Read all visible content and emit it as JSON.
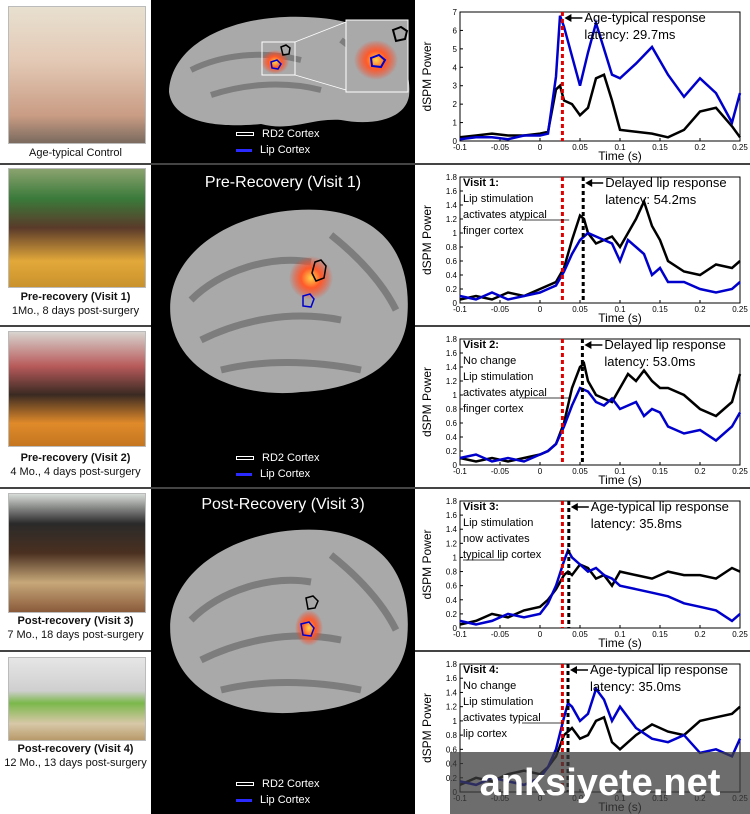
{
  "left_panels": [
    {
      "title": "Age-typical Control",
      "subtitle": ""
    },
    {
      "title": "Pre-recovery (Visit 1)",
      "subtitle": "1Mo., 8 days post-surgery"
    },
    {
      "title": "Pre-recovery (Visit 2)",
      "subtitle": "4 Mo., 4 days post-surgery"
    },
    {
      "title": "Post-recovery (Visit 3)",
      "subtitle": "7 Mo., 18 days post-surgery"
    },
    {
      "title": "Post-recovery (Visit 4)",
      "subtitle": "12 Mo., 13 days post-surgery"
    }
  ],
  "middle": {
    "titles": [
      "Pre-Recovery (Visit 1)",
      "Post-Recovery (Visit 3)"
    ],
    "legend": [
      {
        "label": "RD2 Cortex",
        "color": "#000000"
      },
      {
        "label": "Lip Cortex",
        "color": "#0000cc"
      }
    ]
  },
  "charts": [
    {
      "visit_label": "",
      "desc": [],
      "underline_word": "",
      "annotation": [
        "Age-typical response",
        "latency: 29.7ms"
      ],
      "ylabel": "dSPM Power",
      "xlabel": "Time (s)",
      "yticks": [
        "0",
        "1",
        "2",
        "3",
        "4",
        "5",
        "6",
        "7"
      ],
      "xticks": [
        "-0.1",
        "-0.05",
        "0",
        "0.05",
        "0.1",
        "0.15",
        "0.2",
        "0.25"
      ]
    },
    {
      "visit_label": "Visit 1",
      "desc": [
        "Lip stimulation",
        "activates atypical",
        "finger cortex"
      ],
      "underline_word": "atypical",
      "annotation": [
        "Delayed lip response",
        "latency: 54.2ms"
      ],
      "ylabel": "dSPM Power",
      "xlabel": "Time (s)",
      "yticks": [
        "0",
        "0.2",
        "0.4",
        "0.6",
        "0.8",
        "1",
        "1.2",
        "1.4",
        "1.6",
        "1.8"
      ],
      "xticks": [
        "-0.1",
        "-0.05",
        "0",
        "0.05",
        "0.1",
        "0.15",
        "0.2",
        "0.25"
      ]
    },
    {
      "visit_label": "Visit 2",
      "desc": [
        "No change",
        "Lip stimulation",
        "activates atypical",
        "finger cortex"
      ],
      "underline_word": "atypical",
      "annotation": [
        "Delayed lip response",
        "latency: 53.0ms"
      ],
      "ylabel": "dSPM Power",
      "xlabel": "Time (s)",
      "yticks": [
        "0",
        "0.2",
        "0.4",
        "0.6",
        "0.8",
        "1",
        "1.2",
        "1.4",
        "1.6",
        "1.8"
      ],
      "xticks": [
        "-0.1",
        "-0.05",
        "0",
        "0.05",
        "0.1",
        "0.15",
        "0.2",
        "0.25"
      ]
    },
    {
      "visit_label": "Visit 3",
      "desc": [
        "Lip stimulation",
        "now activates",
        "typical lip cortex"
      ],
      "underline_word": "typical",
      "annotation": [
        "Age-typical lip response",
        "latency: 35.8ms"
      ],
      "ylabel": "dSPM Power",
      "xlabel": "Time (s)",
      "yticks": [
        "0",
        "0.2",
        "0.4",
        "0.6",
        "0.8",
        "1",
        "1.2",
        "1.4",
        "1.6",
        "1.8"
      ],
      "xticks": [
        "-0.1",
        "-0.05",
        "0",
        "0.05",
        "0.1",
        "0.15",
        "0.2",
        "0.25"
      ]
    },
    {
      "visit_label": "Visit 4",
      "desc": [
        "No change",
        "Lip stimulation",
        "activates typical",
        "lip cortex"
      ],
      "underline_word": "typical",
      "annotation": [
        "Age-typical lip response",
        "latency: 35.0ms"
      ],
      "ylabel": "dSPM Power",
      "xlabel": "Time (s)",
      "yticks": [
        "0",
        "0.2",
        "0.4",
        "0.6",
        "0.8",
        "1",
        "1.2",
        "1.4",
        "1.6",
        "1.8"
      ],
      "xticks": [
        "-0.1",
        "-0.05",
        "0",
        "0.05",
        "0.1",
        "0.15",
        "0.2",
        "0.25"
      ]
    }
  ],
  "chart_data": [
    {
      "type": "line",
      "xlabel": "Time (s)",
      "ylabel": "dSPM Power",
      "xlim": [
        -0.1,
        0.25
      ],
      "ylim": [
        0,
        7
      ],
      "onset_line_red": 0.028,
      "latency_line_black": null,
      "series": [
        {
          "name": "RD2 Cortex",
          "color": "#000000",
          "x": [
            -0.1,
            -0.08,
            -0.06,
            -0.04,
            -0.02,
            0,
            0.01,
            0.02,
            0.025,
            0.03,
            0.04,
            0.05,
            0.06,
            0.07,
            0.08,
            0.09,
            0.1,
            0.12,
            0.14,
            0.16,
            0.18,
            0.2,
            0.22,
            0.24,
            0.25
          ],
          "y": [
            0.2,
            0.3,
            0.4,
            0.3,
            0.3,
            0.4,
            0.5,
            2.8,
            3.0,
            2.2,
            2.0,
            1.4,
            1.8,
            3.4,
            3.6,
            2.2,
            0.6,
            0.5,
            0.4,
            0.2,
            0.6,
            1.6,
            1.8,
            0.8,
            0.2
          ]
        },
        {
          "name": "Lip Cortex",
          "color": "#0000cc",
          "x": [
            -0.1,
            -0.08,
            -0.06,
            -0.04,
            -0.02,
            0,
            0.01,
            0.02,
            0.025,
            0.03,
            0.04,
            0.05,
            0.06,
            0.07,
            0.08,
            0.09,
            0.1,
            0.12,
            0.14,
            0.16,
            0.18,
            0.2,
            0.22,
            0.24,
            0.25
          ],
          "y": [
            0.1,
            0.2,
            0.2,
            0.1,
            0.3,
            0.3,
            0.4,
            3.5,
            6.8,
            6.2,
            4.6,
            3.0,
            4.8,
            6.4,
            5.0,
            3.6,
            3.4,
            4.2,
            5.1,
            3.6,
            2.4,
            3.4,
            2.6,
            1.0,
            2.6
          ]
        }
      ]
    },
    {
      "type": "line",
      "xlabel": "Time (s)",
      "ylabel": "dSPM Power",
      "xlim": [
        -0.1,
        0.25
      ],
      "ylim": [
        0,
        1.8
      ],
      "onset_line_red": 0.028,
      "latency_line_black": 0.054,
      "series": [
        {
          "name": "RD2 Cortex",
          "color": "#000000",
          "x": [
            -0.1,
            -0.08,
            -0.06,
            -0.04,
            -0.02,
            0,
            0.01,
            0.02,
            0.03,
            0.04,
            0.05,
            0.055,
            0.06,
            0.07,
            0.08,
            0.09,
            0.1,
            0.11,
            0.12,
            0.13,
            0.14,
            0.15,
            0.16,
            0.18,
            0.2,
            0.22,
            0.24,
            0.25
          ],
          "y": [
            0.05,
            0.1,
            0.05,
            0.15,
            0.1,
            0.2,
            0.25,
            0.3,
            0.5,
            0.9,
            1.25,
            1.2,
            1.0,
            0.85,
            0.9,
            0.95,
            0.8,
            1.0,
            1.2,
            1.45,
            1.1,
            0.9,
            0.6,
            0.45,
            0.4,
            0.55,
            0.5,
            0.6
          ]
        },
        {
          "name": "Lip Cortex",
          "color": "#0000cc",
          "x": [
            -0.1,
            -0.08,
            -0.06,
            -0.04,
            -0.02,
            0,
            0.01,
            0.02,
            0.03,
            0.04,
            0.05,
            0.06,
            0.07,
            0.08,
            0.09,
            0.1,
            0.11,
            0.12,
            0.13,
            0.14,
            0.15,
            0.16,
            0.18,
            0.2,
            0.22,
            0.24,
            0.25
          ],
          "y": [
            0.1,
            0.05,
            0.15,
            0.05,
            0.1,
            0.15,
            0.2,
            0.25,
            0.45,
            0.7,
            0.9,
            1.0,
            0.95,
            0.9,
            0.85,
            0.6,
            0.9,
            0.8,
            0.7,
            0.4,
            0.5,
            0.3,
            0.3,
            0.2,
            0.15,
            0.2,
            0.3
          ]
        }
      ]
    },
    {
      "type": "line",
      "xlabel": "Time (s)",
      "ylabel": "dSPM Power",
      "xlim": [
        -0.1,
        0.25
      ],
      "ylim": [
        0,
        1.8
      ],
      "onset_line_red": 0.028,
      "latency_line_black": 0.053,
      "series": [
        {
          "name": "RD2 Cortex",
          "color": "#000000",
          "x": [
            -0.1,
            -0.08,
            -0.06,
            -0.04,
            -0.02,
            0,
            0.01,
            0.02,
            0.03,
            0.04,
            0.05,
            0.055,
            0.06,
            0.07,
            0.08,
            0.09,
            0.1,
            0.11,
            0.12,
            0.13,
            0.14,
            0.15,
            0.16,
            0.18,
            0.2,
            0.22,
            0.24,
            0.25
          ],
          "y": [
            0.1,
            0.05,
            0.1,
            0.05,
            0.1,
            0.15,
            0.2,
            0.3,
            0.6,
            1.1,
            1.4,
            1.45,
            1.2,
            1.0,
            0.95,
            0.9,
            1.1,
            1.3,
            1.2,
            1.35,
            1.2,
            1.1,
            1.1,
            1.0,
            0.8,
            0.7,
            0.9,
            1.3
          ]
        },
        {
          "name": "Lip Cortex",
          "color": "#0000cc",
          "x": [
            -0.1,
            -0.08,
            -0.06,
            -0.04,
            -0.02,
            0,
            0.01,
            0.02,
            0.03,
            0.04,
            0.05,
            0.06,
            0.07,
            0.08,
            0.09,
            0.1,
            0.11,
            0.12,
            0.13,
            0.14,
            0.15,
            0.16,
            0.18,
            0.2,
            0.22,
            0.24,
            0.25
          ],
          "y": [
            0.1,
            0.15,
            0.05,
            0.1,
            0.05,
            0.15,
            0.2,
            0.3,
            0.55,
            0.85,
            1.1,
            1.05,
            0.9,
            0.85,
            0.95,
            0.8,
            0.85,
            0.9,
            0.7,
            0.8,
            0.75,
            0.55,
            0.45,
            0.5,
            0.35,
            0.55,
            0.75
          ]
        }
      ]
    },
    {
      "type": "line",
      "xlabel": "Time (s)",
      "ylabel": "dSPM Power",
      "xlim": [
        -0.1,
        0.25
      ],
      "ylim": [
        0,
        1.8
      ],
      "onset_line_red": 0.028,
      "latency_line_black": 0.036,
      "series": [
        {
          "name": "RD2 Cortex",
          "color": "#000000",
          "x": [
            -0.1,
            -0.08,
            -0.06,
            -0.04,
            -0.02,
            0,
            0.01,
            0.02,
            0.03,
            0.035,
            0.04,
            0.05,
            0.06,
            0.07,
            0.08,
            0.09,
            0.1,
            0.12,
            0.14,
            0.16,
            0.18,
            0.2,
            0.22,
            0.24,
            0.25
          ],
          "y": [
            0.05,
            0.1,
            0.2,
            0.15,
            0.25,
            0.3,
            0.4,
            0.55,
            0.75,
            0.8,
            0.75,
            0.9,
            0.85,
            0.7,
            0.75,
            0.6,
            0.8,
            0.75,
            0.7,
            0.8,
            0.75,
            0.75,
            0.7,
            0.85,
            0.8
          ]
        },
        {
          "name": "Lip Cortex",
          "color": "#0000cc",
          "x": [
            -0.1,
            -0.08,
            -0.06,
            -0.04,
            -0.02,
            0,
            0.01,
            0.02,
            0.03,
            0.035,
            0.04,
            0.05,
            0.06,
            0.07,
            0.08,
            0.09,
            0.1,
            0.12,
            0.14,
            0.16,
            0.18,
            0.2,
            0.22,
            0.24,
            0.25
          ],
          "y": [
            0.1,
            0.05,
            0.1,
            0.2,
            0.15,
            0.2,
            0.35,
            0.6,
            0.95,
            1.1,
            1.0,
            0.9,
            0.8,
            0.85,
            0.75,
            0.7,
            0.6,
            0.55,
            0.5,
            0.45,
            0.35,
            0.3,
            0.25,
            0.1,
            0.2
          ]
        }
      ]
    },
    {
      "type": "line",
      "xlabel": "Time (s)",
      "ylabel": "dSPM Power",
      "xlim": [
        -0.1,
        0.25
      ],
      "ylim": [
        0,
        1.8
      ],
      "onset_line_red": 0.028,
      "latency_line_black": 0.035,
      "series": [
        {
          "name": "RD2 Cortex",
          "color": "#000000",
          "x": [
            -0.1,
            -0.08,
            -0.06,
            -0.04,
            -0.02,
            0,
            0.01,
            0.02,
            0.03,
            0.035,
            0.04,
            0.05,
            0.06,
            0.07,
            0.08,
            0.09,
            0.1,
            0.12,
            0.14,
            0.16,
            0.18,
            0.2,
            0.22,
            0.24,
            0.25
          ],
          "y": [
            0.1,
            0.2,
            0.15,
            0.25,
            0.3,
            0.25,
            0.35,
            0.5,
            0.8,
            0.85,
            0.9,
            0.75,
            0.8,
            1.0,
            1.05,
            0.7,
            0.6,
            0.8,
            0.95,
            0.85,
            0.8,
            1.0,
            1.05,
            1.1,
            1.2
          ]
        },
        {
          "name": "Lip Cortex",
          "color": "#0000cc",
          "x": [
            -0.1,
            -0.08,
            -0.06,
            -0.04,
            -0.02,
            0,
            0.01,
            0.02,
            0.03,
            0.035,
            0.04,
            0.05,
            0.06,
            0.07,
            0.08,
            0.09,
            0.1,
            0.12,
            0.14,
            0.16,
            0.18,
            0.2,
            0.22,
            0.24,
            0.25
          ],
          "y": [
            0.15,
            0.1,
            0.2,
            0.15,
            0.1,
            0.2,
            0.35,
            0.6,
            1.05,
            1.25,
            1.2,
            1.0,
            1.1,
            1.45,
            1.3,
            1.0,
            1.2,
            0.9,
            0.75,
            0.7,
            0.8,
            0.55,
            0.6,
            0.5,
            0.75
          ]
        }
      ]
    }
  ]
}
